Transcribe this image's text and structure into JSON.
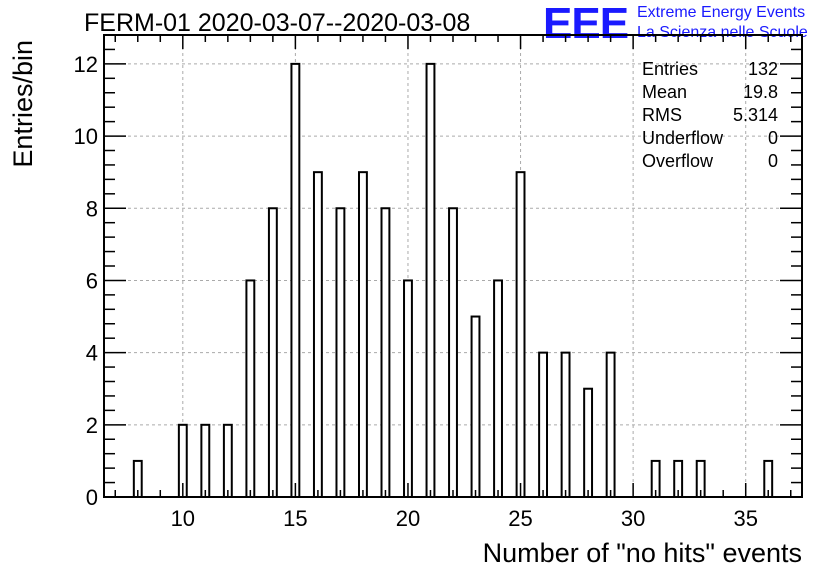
{
  "chart_data": {
    "type": "bar",
    "title": "FERM-01 2020-03-07--2020-03-08",
    "xlabel": "Number of \"no hits\" events",
    "ylabel": "Entries/bin",
    "xlim": [
      6.5,
      37.5
    ],
    "ylim": [
      0,
      12.8
    ],
    "x_ticks": [
      10,
      15,
      20,
      25,
      30,
      35
    ],
    "y_ticks": [
      0,
      2,
      4,
      6,
      8,
      10,
      12
    ],
    "bin_width": 0.5,
    "grid": true,
    "bins": [
      {
        "x": 8,
        "count": 1
      },
      {
        "x": 10,
        "count": 2
      },
      {
        "x": 11,
        "count": 2
      },
      {
        "x": 12,
        "count": 2
      },
      {
        "x": 13,
        "count": 6
      },
      {
        "x": 14,
        "count": 8
      },
      {
        "x": 15,
        "count": 12
      },
      {
        "x": 16,
        "count": 9
      },
      {
        "x": 17,
        "count": 8
      },
      {
        "x": 18,
        "count": 9
      },
      {
        "x": 19,
        "count": 8
      },
      {
        "x": 20,
        "count": 6
      },
      {
        "x": 21,
        "count": 12
      },
      {
        "x": 22,
        "count": 8
      },
      {
        "x": 23,
        "count": 5
      },
      {
        "x": 24,
        "count": 6
      },
      {
        "x": 25,
        "count": 9
      },
      {
        "x": 26,
        "count": 4
      },
      {
        "x": 27,
        "count": 4
      },
      {
        "x": 28,
        "count": 3
      },
      {
        "x": 29,
        "count": 4
      },
      {
        "x": 31,
        "count": 1
      },
      {
        "x": 32,
        "count": 1
      },
      {
        "x": 33,
        "count": 1
      },
      {
        "x": 36,
        "count": 1
      }
    ],
    "stats": [
      {
        "label": "Entries",
        "value": "132"
      },
      {
        "label": "Mean",
        "value": "19.8"
      },
      {
        "label": "RMS",
        "value": "5.314"
      },
      {
        "label": "Underflow",
        "value": "0"
      },
      {
        "label": "Overflow",
        "value": "0"
      }
    ]
  },
  "logo": {
    "mark": "EEE",
    "line1": "Extreme Energy Events",
    "line2": "La Scienza nelle Scuole",
    "color": "#1a1aff"
  }
}
